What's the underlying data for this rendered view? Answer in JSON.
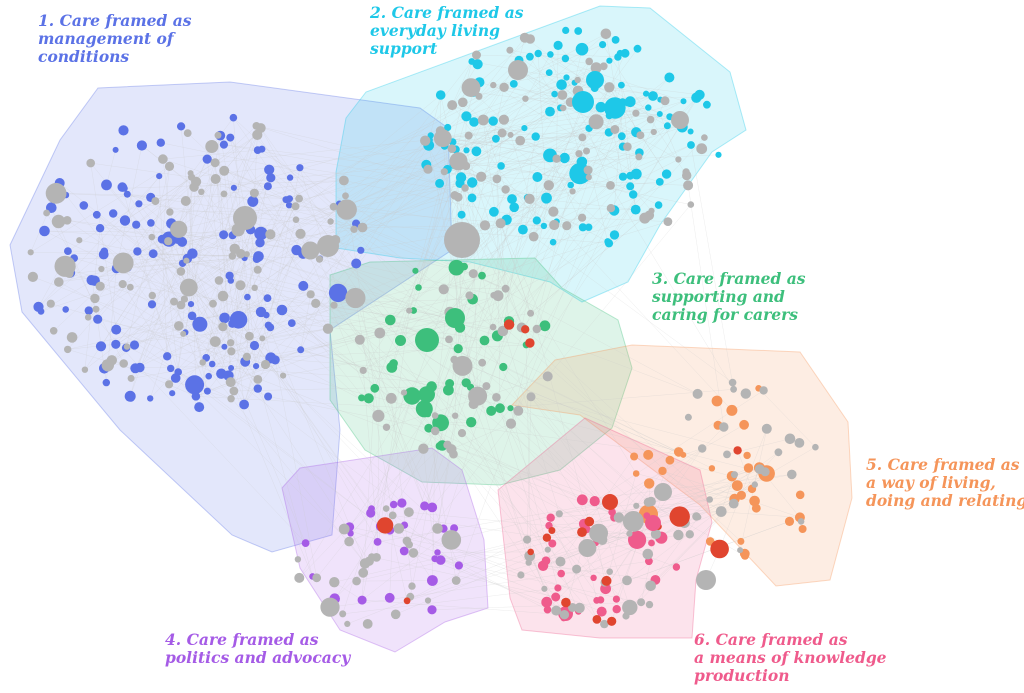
{
  "clusters": [
    {
      "id": "c1",
      "color": "#5b72e6",
      "lines": [
        "1. Care framed as",
        "management of",
        "conditions"
      ]
    },
    {
      "id": "c2",
      "color": "#1ec8e8",
      "lines": [
        "2. Care framed as",
        "everyday living",
        "support"
      ]
    },
    {
      "id": "c3",
      "color": "#3dbf7c",
      "lines": [
        "3. Care framed as",
        "supporting and",
        "caring for carers"
      ]
    },
    {
      "id": "c4",
      "color": "#a55be6",
      "lines": [
        "4. Care framed as",
        "politics and advocacy"
      ]
    },
    {
      "id": "c5",
      "color": "#f5955a",
      "lines": [
        "5. Care framed as",
        "a way of living,",
        "doing and relating"
      ]
    },
    {
      "id": "c6",
      "color": "#ef5b8c",
      "lines": [
        "6. Care framed as",
        "a means of knowledge",
        "production"
      ]
    }
  ],
  "colors": {
    "unassigned_node": "#b4b4b4",
    "bridge_node": "#e0452f",
    "edge": "#c8c8c8"
  }
}
